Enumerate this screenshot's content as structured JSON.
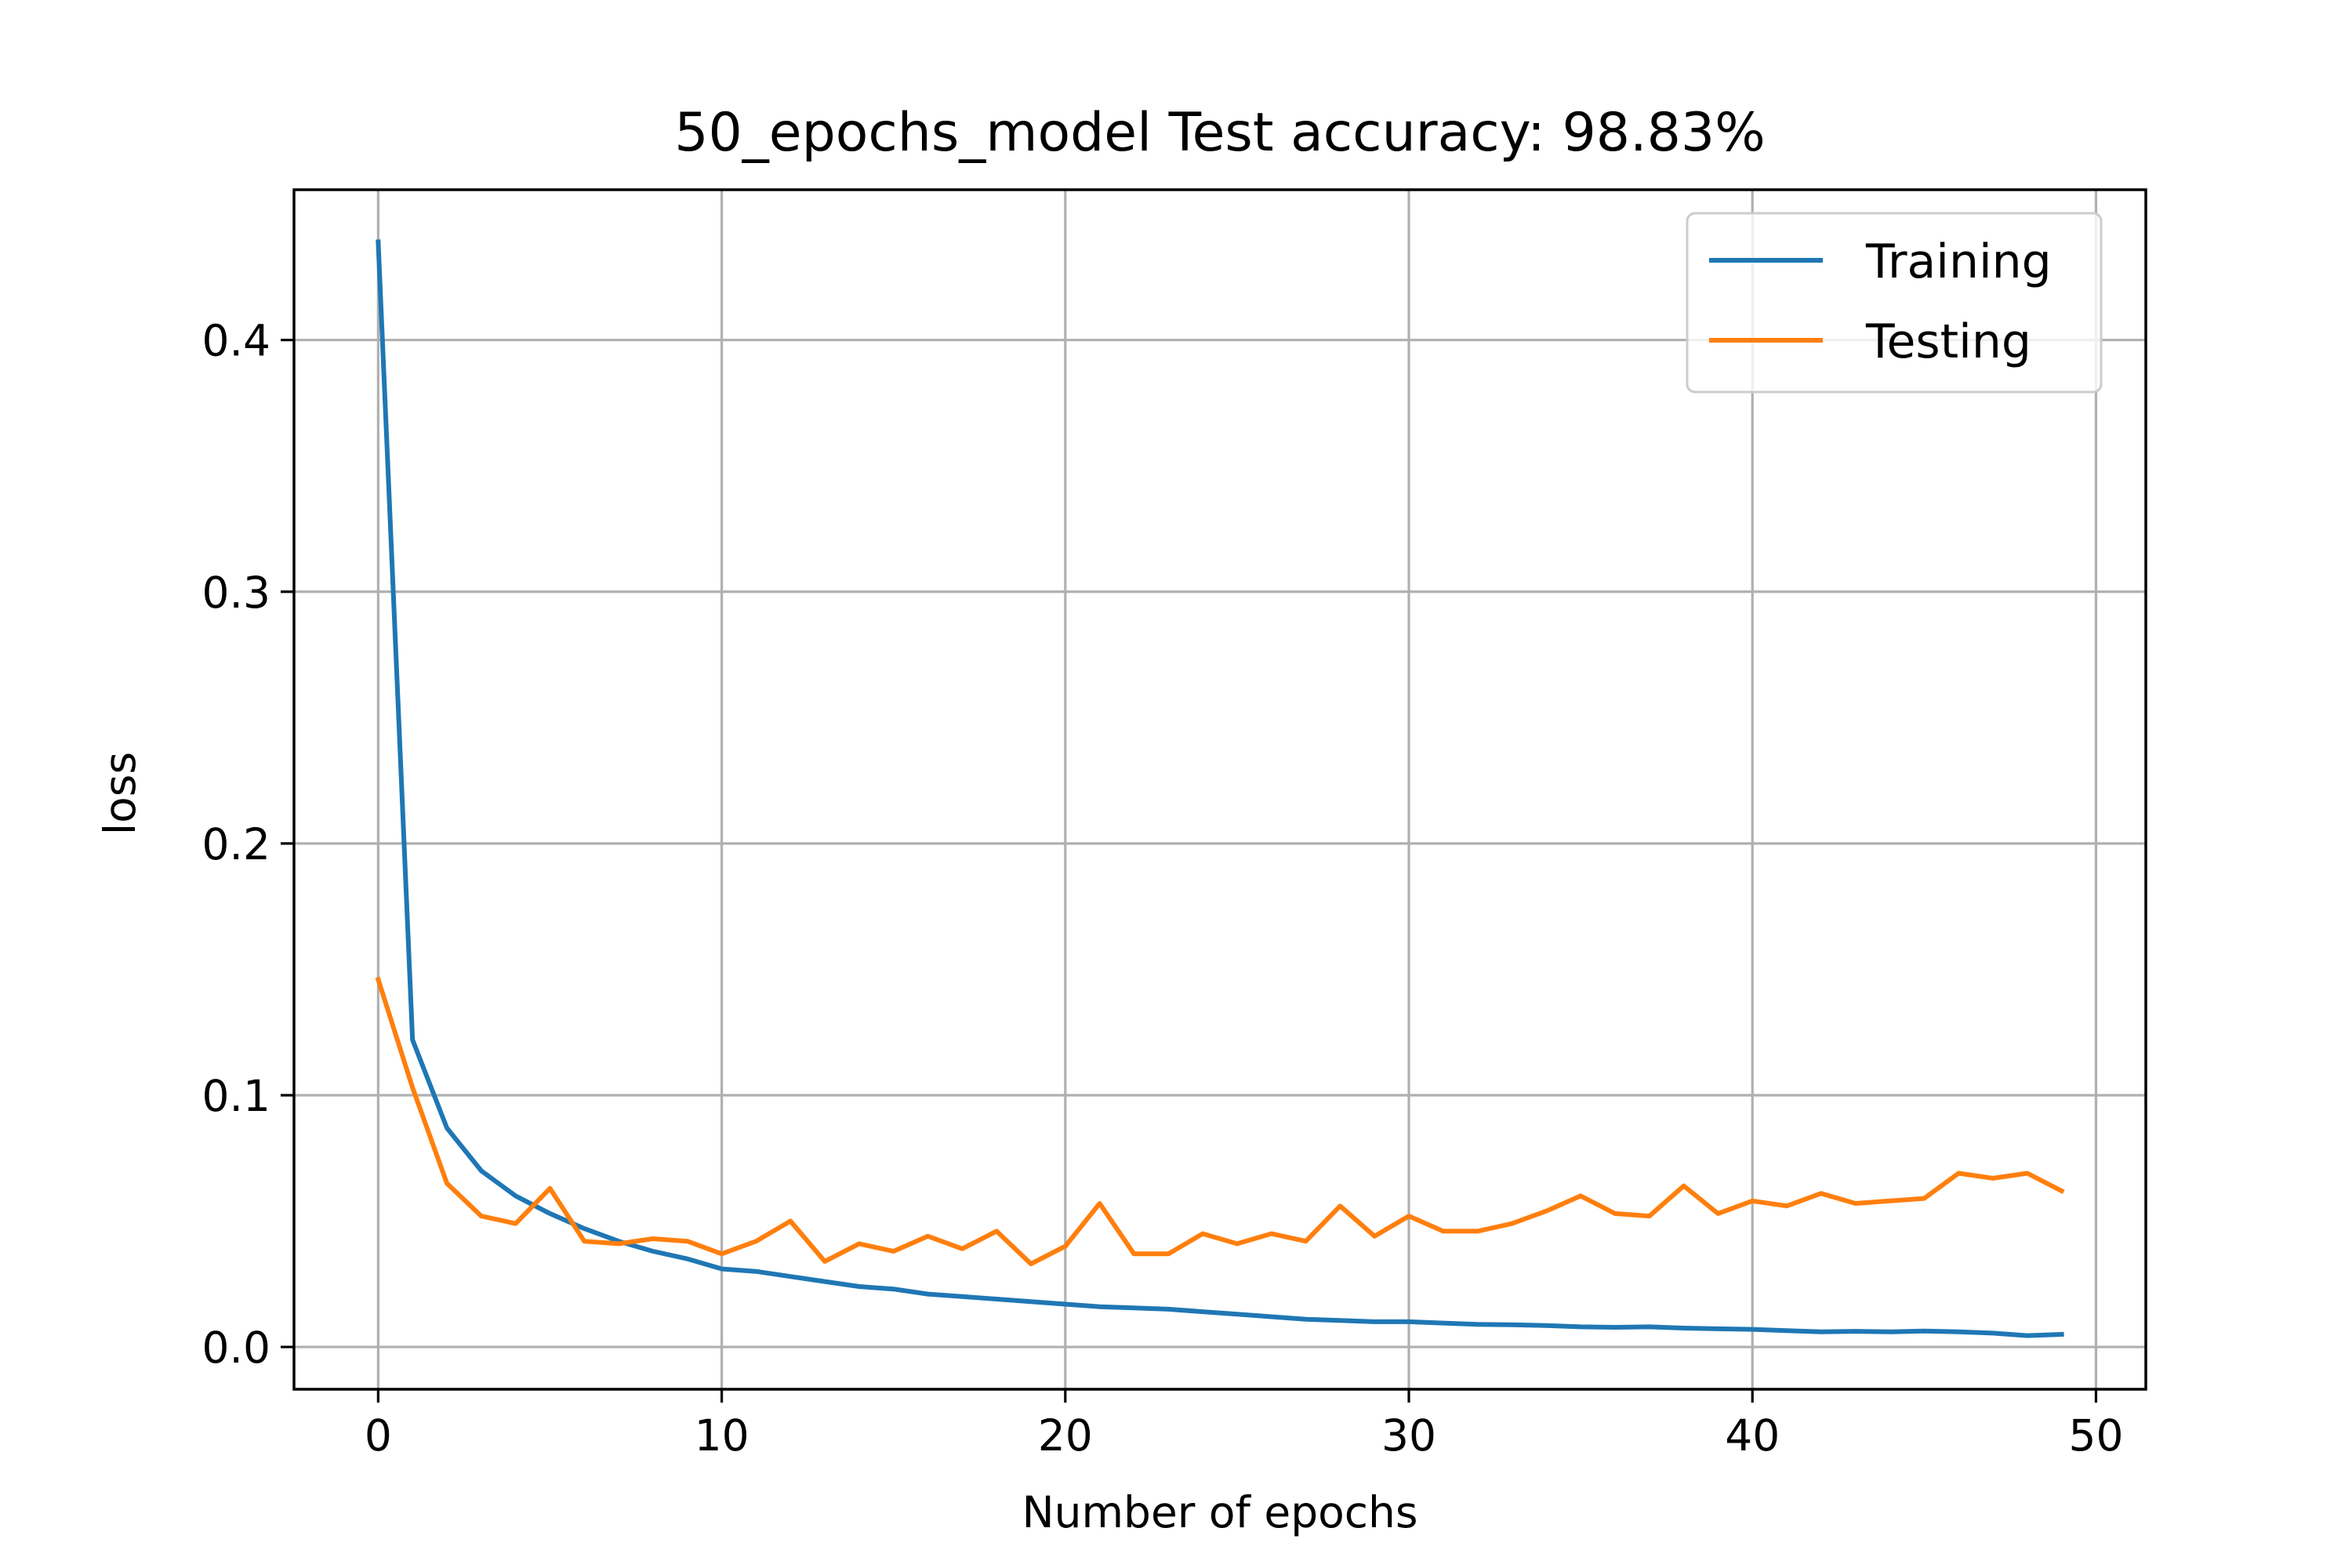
{
  "chart_data": {
    "type": "line",
    "title": "50_epochs_model Test accuracy: 98.83%",
    "xlabel": "Number of epochs",
    "ylabel": "loss",
    "xlim": [
      -2.45,
      51.45
    ],
    "ylim": [
      -0.0168,
      0.4597
    ],
    "xticks": [
      0,
      10,
      20,
      30,
      40,
      50
    ],
    "yticks": [
      0.0,
      0.1,
      0.2,
      0.3,
      0.4
    ],
    "xtick_labels": [
      "0",
      "10",
      "20",
      "30",
      "40",
      "50"
    ],
    "ytick_labels": [
      "0.0",
      "0.1",
      "0.2",
      "0.3",
      "0.4"
    ],
    "grid": true,
    "legend_position": "top-right",
    "x": [
      0,
      1,
      2,
      3,
      4,
      5,
      6,
      7,
      8,
      9,
      10,
      11,
      12,
      13,
      14,
      15,
      16,
      17,
      18,
      19,
      20,
      21,
      22,
      23,
      24,
      25,
      26,
      27,
      28,
      29,
      30,
      31,
      32,
      33,
      34,
      35,
      36,
      37,
      38,
      39,
      40,
      41,
      42,
      43,
      44,
      45,
      46,
      47,
      48,
      49
    ],
    "series": [
      {
        "name": "Training",
        "color": "#1f77b4",
        "values": [
          0.439,
          0.122,
          0.087,
          0.07,
          0.06,
          0.053,
          0.047,
          0.042,
          0.038,
          0.035,
          0.031,
          0.03,
          0.028,
          0.026,
          0.024,
          0.023,
          0.021,
          0.02,
          0.019,
          0.018,
          0.017,
          0.016,
          0.0155,
          0.015,
          0.014,
          0.013,
          0.012,
          0.011,
          0.0105,
          0.01,
          0.01,
          0.0095,
          0.009,
          0.0088,
          0.0085,
          0.008,
          0.0078,
          0.008,
          0.0075,
          0.0072,
          0.007,
          0.0065,
          0.006,
          0.0062,
          0.006,
          0.0063,
          0.006,
          0.0055,
          0.0045,
          0.005
        ]
      },
      {
        "name": "Testing",
        "color": "#ff7f0e",
        "values": [
          0.146,
          0.103,
          0.065,
          0.052,
          0.049,
          0.063,
          0.042,
          0.041,
          0.043,
          0.042,
          0.037,
          0.042,
          0.05,
          0.034,
          0.041,
          0.038,
          0.044,
          0.039,
          0.046,
          0.033,
          0.04,
          0.057,
          0.037,
          0.037,
          0.045,
          0.041,
          0.045,
          0.042,
          0.056,
          0.044,
          0.052,
          0.046,
          0.046,
          0.049,
          0.054,
          0.06,
          0.053,
          0.052,
          0.064,
          0.053,
          0.058,
          0.056,
          0.061,
          0.057,
          0.058,
          0.059,
          0.069,
          0.067,
          0.069,
          0.062
        ]
      }
    ]
  }
}
